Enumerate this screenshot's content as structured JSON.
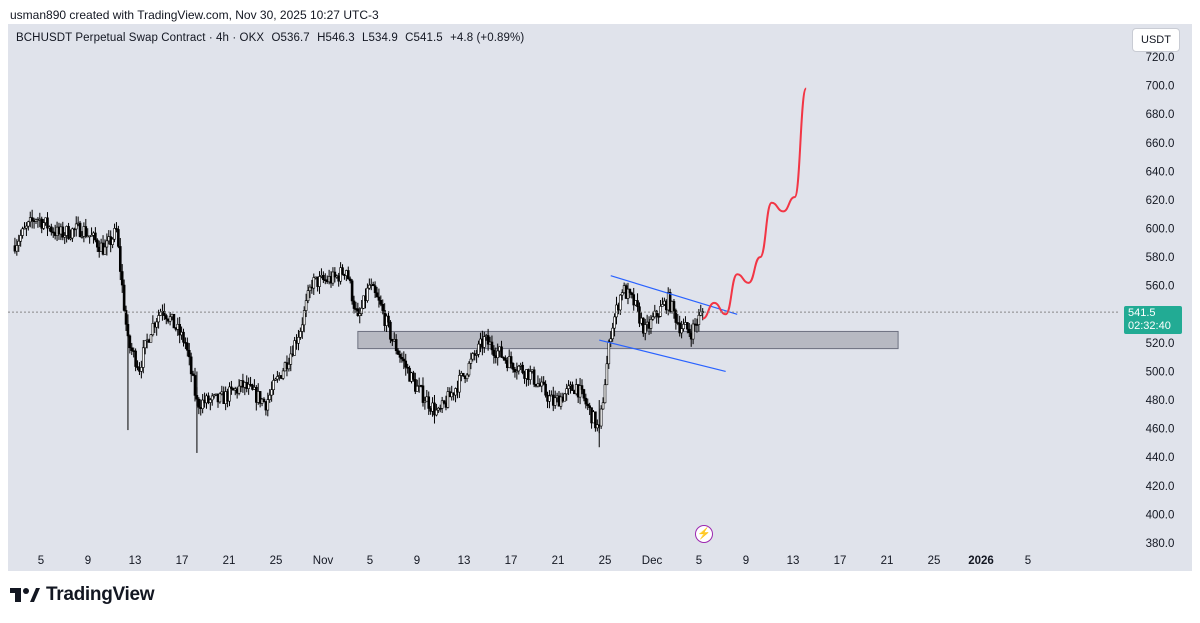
{
  "attribution": "usman890 created with TradingView.com, Nov 30, 2025 10:27 UTC-3",
  "legend": {
    "symbol": "BCHUSDT Perpetual Swap Contract · 4h · OKX",
    "open": "O536.7",
    "high": "H546.3",
    "low": "L534.9",
    "close": "C541.5",
    "change": "+4.8 (+0.89%)"
  },
  "currency": "USDT",
  "last_price": {
    "value": "541.5",
    "countdown": "02:32:40"
  },
  "brand": {
    "name": "TradingView"
  },
  "colors": {
    "background": "#e0e3eb",
    "candle": "#000000",
    "zone": "#9598a1",
    "channel": "#2962ff",
    "projection": "#f23645",
    "price_label": "#22ab94"
  },
  "chart_data": {
    "type": "candlestick",
    "interval": "4h",
    "ylim": [
      380,
      720
    ],
    "y_ticks": [
      "380.0",
      "400.0",
      "420.0",
      "440.0",
      "460.0",
      "480.0",
      "500.0",
      "520.0",
      "540.0",
      "560.0",
      "580.0",
      "600.0",
      "620.0",
      "640.0",
      "660.0",
      "680.0",
      "700.0",
      "720.0"
    ],
    "x_ticks": [
      "5",
      "9",
      "13",
      "17",
      "21",
      "25",
      "Nov",
      "5",
      "9",
      "13",
      "17",
      "21",
      "25",
      "Dec",
      "5",
      "9",
      "13",
      "17",
      "21",
      "25",
      "2026",
      "5"
    ],
    "x_range": [
      "2025-10-01",
      "2026-01-06"
    ],
    "price_path": [
      [
        "2025-10-01",
        588
      ],
      [
        "2025-10-03",
        608
      ],
      [
        "2025-10-05",
        596
      ],
      [
        "2025-10-07",
        600
      ],
      [
        "2025-10-09",
        585
      ],
      [
        "2025-10-10",
        598
      ],
      [
        "2025-10-11",
        520
      ],
      [
        "2025-10-12",
        503
      ],
      [
        "2025-10-13",
        530
      ],
      [
        "2025-10-14",
        545
      ],
      [
        "2025-10-16",
        520
      ],
      [
        "2025-10-17",
        478
      ],
      [
        "2025-10-19",
        480
      ],
      [
        "2025-10-21",
        490
      ],
      [
        "2025-10-23",
        478
      ],
      [
        "2025-10-25",
        510
      ],
      [
        "2025-10-26",
        530
      ],
      [
        "2025-10-27",
        562
      ],
      [
        "2025-10-29",
        565
      ],
      [
        "2025-10-30",
        572
      ],
      [
        "2025-10-31",
        535
      ],
      [
        "2025-11-01",
        560
      ],
      [
        "2025-11-02",
        545
      ],
      [
        "2025-11-03",
        522
      ],
      [
        "2025-11-05",
        490
      ],
      [
        "2025-11-07",
        470
      ],
      [
        "2025-11-09",
        495
      ],
      [
        "2025-11-11",
        522
      ],
      [
        "2025-11-13",
        508
      ],
      [
        "2025-11-15",
        498
      ],
      [
        "2025-11-17",
        478
      ],
      [
        "2025-11-19",
        490
      ],
      [
        "2025-11-20",
        475
      ],
      [
        "2025-11-21",
        458
      ],
      [
        "2025-11-22",
        528
      ],
      [
        "2025-11-23",
        558
      ],
      [
        "2025-11-24",
        548
      ],
      [
        "2025-11-25",
        528
      ],
      [
        "2025-11-26",
        540
      ],
      [
        "2025-11-27",
        550
      ],
      [
        "2025-11-28",
        532
      ],
      [
        "2025-11-29",
        528
      ],
      [
        "2025-11-30",
        541.5
      ]
    ],
    "annotations": {
      "support_zone": {
        "from": "2025-10-31",
        "to": "2025-12-17",
        "low": 516,
        "high": 528
      },
      "channel_upper": [
        [
          "2025-11-22",
          567
        ],
        [
          "2025-12-03",
          540
        ]
      ],
      "channel_lower": [
        [
          "2025-11-21",
          522
        ],
        [
          "2025-12-02",
          500
        ]
      ],
      "projection": [
        [
          "2025-11-30",
          537
        ],
        [
          "2025-12-01",
          548
        ],
        [
          "2025-12-02",
          540
        ],
        [
          "2025-12-03",
          568
        ],
        [
          "2025-12-04",
          562
        ],
        [
          "2025-12-05",
          580
        ],
        [
          "2025-12-06",
          618
        ],
        [
          "2025-12-07",
          612
        ],
        [
          "2025-12-08",
          622
        ],
        [
          "2025-12-09",
          698
        ]
      ]
    }
  }
}
